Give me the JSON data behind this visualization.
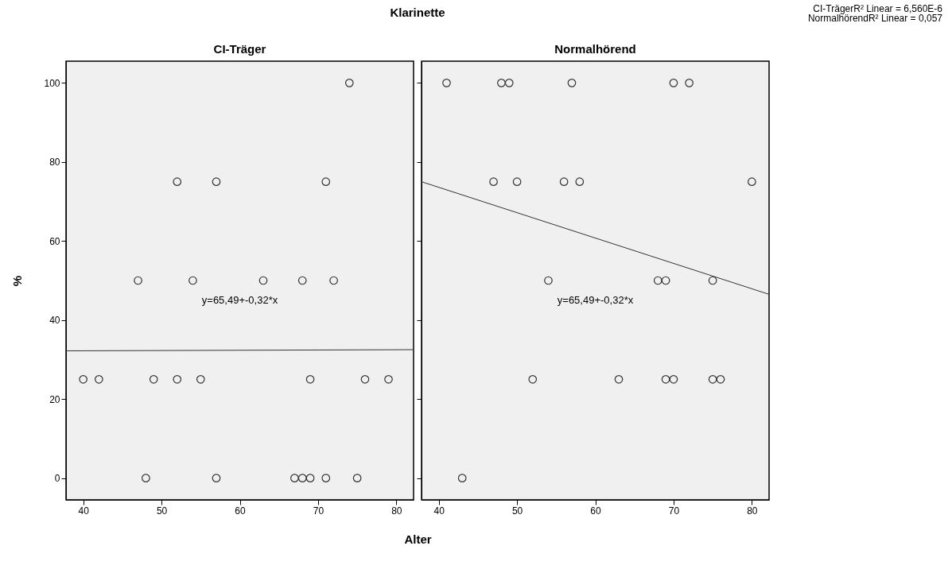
{
  "chart_data": [
    {
      "type": "scatter",
      "title": "CI-Träger",
      "xlabel": "Alter",
      "ylabel": "%",
      "xlim": [
        37.8,
        82.2
      ],
      "ylim": [
        -5.5,
        105.5
      ],
      "xticks": [
        40,
        50,
        60,
        70,
        80
      ],
      "yticks": [
        0,
        20,
        40,
        60,
        80,
        100
      ],
      "annotations": [
        "Klarinette",
        "y=65,49+-0,32*x"
      ],
      "series": [
        {
          "marker": "circle",
          "color": "#333333",
          "x": [
            74,
            52,
            57,
            71,
            47,
            54,
            63,
            68,
            72,
            40,
            42,
            49,
            52,
            55,
            69,
            76,
            79,
            48,
            57,
            67,
            68,
            69,
            71,
            75
          ],
          "values": [
            100,
            75,
            75,
            75,
            50,
            50,
            50,
            50,
            50,
            25,
            25,
            25,
            25,
            25,
            25,
            25,
            25,
            0,
            0,
            0,
            0,
            0,
            0,
            0
          ]
        },
        {
          "type": "line",
          "color": "#333333",
          "x": [
            37.8,
            82.2
          ],
          "values": [
            32.2,
            32.5
          ]
        }
      ]
    },
    {
      "type": "scatter",
      "title": "Normalhörend",
      "xlim": [
        37.8,
        82.2
      ],
      "ylim": [
        -5.5,
        105.5
      ],
      "xticks": [
        40,
        50,
        60,
        70,
        80
      ],
      "yticks": [
        0,
        20,
        40,
        60,
        80,
        100
      ],
      "tick_labels": "x",
      "annotations": [
        "CI-TrägerR² Linear = 6,560E-6",
        "NormalhörendR² Linear = 0,057",
        "y=65,49+-0,32*x"
      ],
      "series": [
        {
          "marker": "circle",
          "color": "#333333",
          "x": [
            41,
            48,
            49,
            57,
            70,
            72,
            47,
            50,
            56,
            58,
            80,
            54,
            68,
            69,
            75,
            52,
            63,
            69,
            70,
            75,
            76,
            43
          ],
          "values": [
            100,
            100,
            100,
            100,
            100,
            100,
            75,
            75,
            75,
            75,
            75,
            50,
            50,
            50,
            50,
            25,
            25,
            25,
            25,
            25,
            25,
            0
          ]
        },
        {
          "type": "line",
          "color": "#333333",
          "x": [
            37.8,
            82.2
          ],
          "values": [
            75,
            46.5
          ]
        }
      ]
    }
  ]
}
